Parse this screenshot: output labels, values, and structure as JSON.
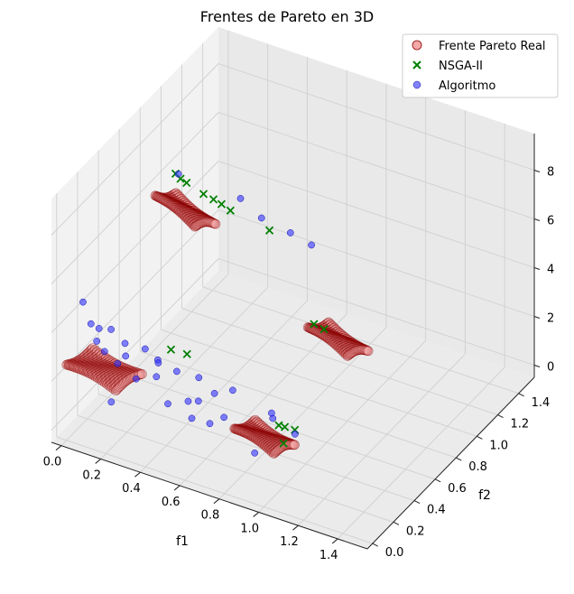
{
  "chart_data": {
    "type": "scatter",
    "title": "Frentes de Pareto en 3D",
    "xlabel": "f1",
    "ylabel": "f2",
    "zlabel": "",
    "xlim": [
      -0.05,
      1.55
    ],
    "ylim": [
      -0.05,
      1.55
    ],
    "zlim": [
      -0.5,
      9.5
    ],
    "x_ticks": [
      "0.0",
      "0.2",
      "0.4",
      "0.6",
      "0.8",
      "1.0",
      "1.2",
      "1.4"
    ],
    "y_ticks": [
      "0.0",
      "0.2",
      "0.4",
      "0.6",
      "0.8",
      "1.0",
      "1.2",
      "1.4"
    ],
    "z_ticks": [
      "0",
      "2",
      "4",
      "6",
      "8"
    ],
    "grid": true,
    "legend_position": "top-right",
    "colors": {
      "real": "#8b0000",
      "real_light": "#f4a8a8",
      "nsga": "#008000",
      "algo": "#3030ff",
      "pane_left": "#f2f2f2",
      "pane_right": "#e9e9e9",
      "pane_floor": "#ebebeb"
    },
    "series": [
      {
        "name": "Frente Pareto Real",
        "marker": "circle",
        "regions": [
          {
            "label": "region-1",
            "f1": [
              0.0,
              0.25
            ],
            "f2": [
              0.0,
              0.25
            ],
            "f3": [
              1.8,
              2.6
            ]
          },
          {
            "label": "region-2",
            "f1": [
              0.85,
              1.05
            ],
            "f2": [
              0.0,
              0.2
            ],
            "f3": [
              1.3,
              2.3
            ]
          },
          {
            "label": "region-3",
            "f1": [
              0.0,
              0.2
            ],
            "f2": [
              0.85,
              1.05
            ],
            "f3": [
              4.3,
              5.8
            ]
          },
          {
            "label": "region-4",
            "f1": [
              0.8,
              1.0
            ],
            "f2": [
              0.8,
              1.0
            ],
            "f3": [
              1.5,
              2.8
            ]
          }
        ]
      },
      {
        "name": "NSGA-II",
        "marker": "x",
        "points": [
          [
            0.05,
            0.95,
            6.4
          ],
          [
            0.07,
            0.96,
            6.2
          ],
          [
            0.09,
            0.98,
            6.0
          ],
          [
            0.16,
            1.01,
            5.6
          ],
          [
            0.2,
            1.03,
            5.4
          ],
          [
            0.23,
            1.05,
            5.2
          ],
          [
            0.27,
            1.06,
            5.0
          ],
          [
            0.42,
            1.15,
            4.2
          ],
          [
            0.36,
            0.32,
            2.8
          ],
          [
            0.42,
            0.36,
            2.6
          ],
          [
            0.98,
            0.18,
            2.0
          ],
          [
            1.0,
            0.2,
            1.9
          ],
          [
            1.04,
            0.22,
            1.8
          ],
          [
            1.02,
            0.15,
            1.5
          ],
          [
            0.82,
            0.82,
            2.9
          ],
          [
            0.85,
            0.86,
            2.6
          ]
        ]
      },
      {
        "name": "Algoritmo",
        "marker": "circle",
        "points": [
          [
            0.02,
            0.12,
            4.7
          ],
          [
            0.05,
            0.14,
            3.8
          ],
          [
            0.08,
            0.16,
            3.6
          ],
          [
            0.1,
            0.1,
            3.4
          ],
          [
            0.12,
            0.2,
            3.5
          ],
          [
            0.15,
            0.08,
            3.2
          ],
          [
            0.18,
            0.22,
            3.0
          ],
          [
            0.22,
            0.15,
            2.9
          ],
          [
            0.25,
            0.28,
            2.7
          ],
          [
            0.3,
            0.1,
            2.4
          ],
          [
            0.33,
            0.25,
            2.6
          ],
          [
            0.36,
            0.18,
            2.3
          ],
          [
            0.4,
            0.3,
            2.1
          ],
          [
            0.45,
            0.12,
            1.7
          ],
          [
            0.5,
            0.22,
            1.5
          ],
          [
            0.52,
            0.28,
            1.3
          ],
          [
            0.55,
            0.16,
            1.2
          ],
          [
            0.58,
            0.32,
            1.6
          ],
          [
            0.62,
            0.2,
            1.0
          ],
          [
            0.66,
            0.26,
            1.1
          ],
          [
            0.1,
            0.3,
            1.6
          ],
          [
            0.2,
            0.05,
            1.4
          ],
          [
            0.28,
            0.35,
            1.9
          ],
          [
            0.48,
            0.36,
            1.8
          ],
          [
            0.08,
            0.92,
            6.6
          ],
          [
            0.3,
            1.1,
            5.4
          ],
          [
            0.38,
            1.15,
            4.6
          ],
          [
            0.5,
            1.2,
            4.1
          ],
          [
            0.58,
            1.25,
            3.6
          ],
          [
            0.62,
            0.42,
            1.4
          ],
          [
            0.9,
            0.1,
            1.0
          ],
          [
            0.95,
            0.18,
            2.2
          ],
          [
            1.02,
            0.26,
            1.4
          ],
          [
            0.88,
            0.3,
            1.7
          ]
        ]
      }
    ]
  }
}
